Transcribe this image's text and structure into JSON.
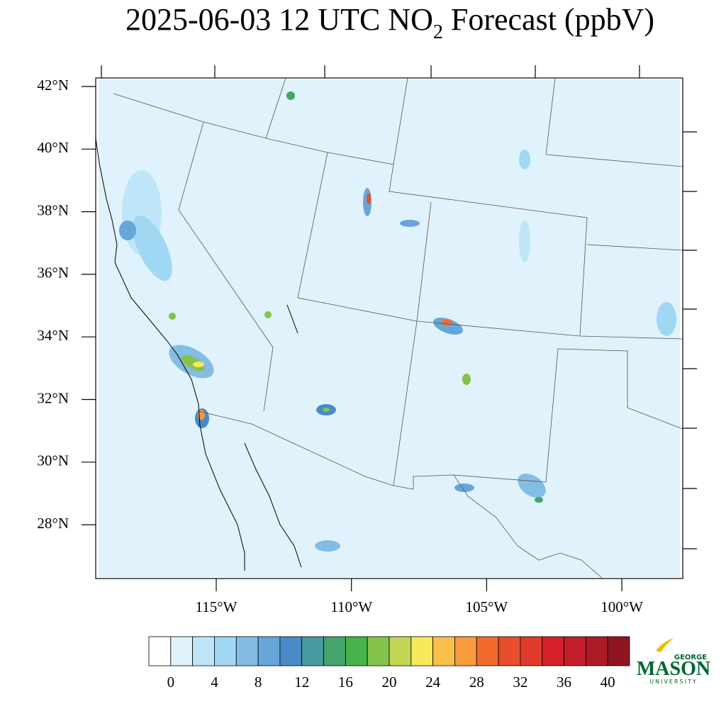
{
  "title": {
    "before": "2025-06-03 12 UTC NO",
    "subscript": "2",
    "after": " Forecast (ppbV)"
  },
  "map": {
    "lat_ticks": [
      {
        "value": 42,
        "label": "42°N"
      },
      {
        "value": 40,
        "label": "40°N"
      },
      {
        "value": 38,
        "label": "38°N"
      },
      {
        "value": 36,
        "label": "36°N"
      },
      {
        "value": 34,
        "label": "34°N"
      },
      {
        "value": 32,
        "label": "32°N"
      },
      {
        "value": 30,
        "label": "30°N"
      },
      {
        "value": 28,
        "label": "28°N"
      }
    ],
    "lon_ticks": [
      {
        "value": -115,
        "label": "115°W"
      },
      {
        "value": -110,
        "label": "110°W"
      },
      {
        "value": -105,
        "label": "105°W"
      },
      {
        "value": -100,
        "label": "100°W"
      }
    ]
  },
  "colorbar": {
    "range": [
      -2,
      42
    ],
    "ticks": [
      0,
      4,
      8,
      12,
      16,
      20,
      24,
      28,
      32,
      36,
      40
    ],
    "colors": [
      "#ffffff",
      "#e0f3fb",
      "#bfe6f8",
      "#a0d8f4",
      "#84bde4",
      "#68a5da",
      "#4a8ac8",
      "#489b9f",
      "#45a56c",
      "#47b44a",
      "#84c24c",
      "#c2d654",
      "#f8e95a",
      "#f9c04c",
      "#f79b3e",
      "#f26b2d",
      "#e84e2b",
      "#df3a2a",
      "#d4202a",
      "#c21e2b",
      "#ad1a27",
      "#8f1620"
    ]
  },
  "logo": {
    "top": "GEORGE",
    "main": "MASON",
    "bottom": "UNIVERSITY"
  }
}
